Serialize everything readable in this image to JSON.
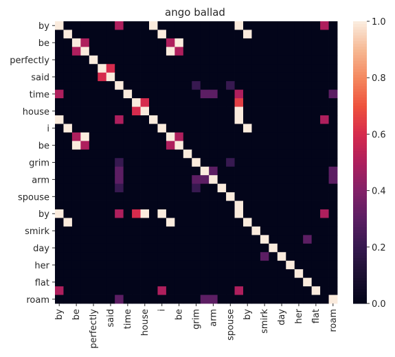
{
  "chart_data": {
    "type": "heatmap",
    "title": "ango ballad",
    "xlabel": "",
    "ylabel": "",
    "tokens": [
      "by",
      "by",
      "be",
      "be",
      "perfectly",
      "said",
      "said",
      "time",
      "time",
      "house",
      "house",
      "i",
      "i",
      "be",
      "be",
      "grim",
      "grim",
      "arm",
      "arm",
      "spouse",
      "spouse",
      "by",
      "by",
      "smirk",
      "smirk",
      "day",
      "day",
      "her",
      "her",
      "flat",
      "flat",
      "roam",
      "roam"
    ],
    "x_tick_labels": [
      "by",
      "be",
      "perfectly",
      "said",
      "time",
      "house",
      "i",
      "be",
      "grim",
      "arm",
      "spouse",
      "by",
      "smirk",
      "day",
      "her",
      "flat",
      "roam"
    ],
    "y_tick_labels": [
      "by",
      "be",
      "perfectly",
      "said",
      "time",
      "house",
      "i",
      "be",
      "grim",
      "arm",
      "spouse",
      "by",
      "smirk",
      "day",
      "her",
      "flat",
      "roam"
    ],
    "tick_every": 2,
    "colorbar": {
      "min": 0.0,
      "max": 1.0,
      "ticks": [
        "0.0",
        "0.2",
        "0.4",
        "0.6",
        "0.8",
        "1.0"
      ],
      "colormap": "rocket"
    },
    "values": [
      [
        1,
        0,
        0,
        0,
        0,
        0,
        0,
        0.5,
        0,
        0,
        0,
        1,
        0,
        0,
        0,
        0,
        0,
        0,
        0,
        0,
        0,
        1,
        0,
        0,
        0,
        0,
        0,
        0,
        0,
        0,
        0,
        0.5,
        0
      ],
      [
        0,
        1,
        0,
        0,
        0,
        0,
        0,
        0,
        0,
        0,
        0,
        0,
        1,
        0,
        0,
        0,
        0,
        0,
        0,
        0,
        0,
        0,
        1,
        0,
        0,
        0,
        0,
        0,
        0,
        0,
        0,
        0,
        0
      ],
      [
        0,
        0,
        1,
        0.5,
        0,
        0,
        0,
        0,
        0,
        0,
        0,
        0,
        0,
        0.5,
        1,
        0,
        0,
        0,
        0,
        0,
        0,
        0,
        0,
        0,
        0,
        0,
        0,
        0,
        0,
        0,
        0,
        0,
        0
      ],
      [
        0,
        0,
        0.5,
        1,
        0,
        0,
        0,
        0,
        0,
        0,
        0,
        0,
        0,
        1,
        0.5,
        0,
        0,
        0,
        0,
        0,
        0,
        0,
        0,
        0,
        0,
        0,
        0,
        0,
        0,
        0,
        0,
        0,
        0
      ],
      [
        0,
        0,
        0,
        0,
        1,
        0,
        0,
        0,
        0,
        0,
        0,
        0,
        0,
        0,
        0,
        0,
        0,
        0,
        0,
        0,
        0,
        0,
        0,
        0,
        0,
        0,
        0,
        0,
        0,
        0,
        0,
        0,
        0
      ],
      [
        0,
        0,
        0,
        0,
        0,
        1,
        0.6,
        0,
        0,
        0,
        0,
        0,
        0,
        0,
        0,
        0,
        0,
        0,
        0,
        0,
        0,
        0,
        0,
        0,
        0,
        0,
        0,
        0,
        0,
        0,
        0,
        0,
        0
      ],
      [
        0,
        0,
        0,
        0,
        0,
        0.6,
        1,
        0,
        0,
        0,
        0,
        0,
        0,
        0,
        0,
        0,
        0,
        0,
        0,
        0,
        0,
        0,
        0,
        0,
        0,
        0,
        0,
        0,
        0,
        0,
        0,
        0,
        0
      ],
      [
        0,
        0,
        0,
        0,
        0,
        0,
        0,
        1,
        0,
        0,
        0,
        0,
        0,
        0,
        0,
        0,
        0.2,
        0,
        0,
        0,
        0.2,
        0,
        0,
        0,
        0,
        0,
        0,
        0,
        0,
        0,
        0,
        0,
        0
      ],
      [
        0.5,
        0,
        0,
        0,
        0,
        0,
        0,
        0,
        1,
        0,
        0,
        0,
        0,
        0,
        0,
        0,
        0,
        0.3,
        0.3,
        0,
        0,
        0.5,
        0,
        0,
        0,
        0,
        0,
        0,
        0,
        0,
        0,
        0,
        0.3
      ],
      [
        0,
        0,
        0,
        0,
        0,
        0,
        0,
        0,
        0,
        1,
        0.6,
        0,
        0,
        0,
        0,
        0,
        0,
        0,
        0,
        0,
        0,
        0.65,
        0,
        0,
        0,
        0,
        0,
        0,
        0,
        0,
        0,
        0,
        0
      ],
      [
        0,
        0,
        0,
        0,
        0,
        0,
        0,
        0,
        0,
        0.6,
        1,
        0,
        0,
        0,
        0,
        0,
        0,
        0,
        0,
        0,
        0,
        1,
        0,
        0,
        0,
        0,
        0,
        0,
        0,
        0,
        0,
        0,
        0
      ],
      [
        1,
        0,
        0,
        0,
        0,
        0,
        0,
        0.5,
        0,
        0,
        0,
        1,
        0,
        0,
        0,
        0,
        0,
        0,
        0,
        0,
        0,
        1,
        0,
        0,
        0,
        0,
        0,
        0,
        0,
        0,
        0,
        0.5,
        0
      ],
      [
        0,
        1,
        0,
        0,
        0,
        0,
        0,
        0,
        0,
        0,
        0,
        0,
        1,
        0,
        0,
        0,
        0,
        0,
        0,
        0,
        0,
        0,
        1,
        0,
        0,
        0,
        0,
        0,
        0,
        0,
        0,
        0,
        0
      ],
      [
        0,
        0,
        0.5,
        1,
        0,
        0,
        0,
        0,
        0,
        0,
        0,
        0,
        0,
        1,
        0.5,
        0,
        0,
        0,
        0,
        0,
        0,
        0,
        0,
        0,
        0,
        0,
        0,
        0,
        0,
        0,
        0,
        0,
        0
      ],
      [
        0,
        0,
        1,
        0.5,
        0,
        0,
        0,
        0,
        0,
        0,
        0,
        0,
        0,
        0.5,
        1,
        0,
        0,
        0,
        0,
        0,
        0,
        0,
        0,
        0,
        0,
        0,
        0,
        0,
        0,
        0,
        0,
        0,
        0
      ],
      [
        0,
        0,
        0,
        0,
        0,
        0,
        0,
        0,
        0,
        0,
        0,
        0,
        0,
        0,
        0,
        1,
        0,
        0,
        0,
        0,
        0,
        0,
        0,
        0,
        0,
        0,
        0,
        0,
        0,
        0,
        0,
        0,
        0
      ],
      [
        0,
        0,
        0,
        0,
        0,
        0,
        0,
        0.2,
        0,
        0,
        0,
        0,
        0,
        0,
        0,
        0,
        1,
        0,
        0,
        0,
        0.2,
        0,
        0,
        0,
        0,
        0,
        0,
        0,
        0,
        0,
        0,
        0,
        0
      ],
      [
        0,
        0,
        0,
        0,
        0,
        0,
        0,
        0.3,
        0,
        0,
        0,
        0,
        0,
        0,
        0,
        0,
        0,
        1,
        0.3,
        0,
        0,
        0,
        0,
        0,
        0,
        0,
        0,
        0,
        0,
        0,
        0,
        0,
        0.3
      ],
      [
        0,
        0,
        0,
        0,
        0,
        0,
        0,
        0.3,
        0,
        0,
        0,
        0,
        0,
        0,
        0,
        0,
        0.3,
        0.3,
        1,
        0,
        0,
        0,
        0,
        0,
        0,
        0,
        0,
        0,
        0,
        0,
        0,
        0,
        0.3
      ],
      [
        0,
        0,
        0,
        0,
        0,
        0,
        0,
        0.2,
        0,
        0,
        0,
        0,
        0,
        0,
        0,
        0,
        0.2,
        0,
        0,
        1,
        0,
        0,
        0,
        0,
        0,
        0,
        0,
        0,
        0,
        0,
        0,
        0,
        0
      ],
      [
        0,
        0,
        0,
        0,
        0,
        0,
        0,
        0,
        0,
        0,
        0,
        0,
        0,
        0,
        0,
        0,
        0,
        0,
        0,
        0,
        1,
        0,
        0,
        0,
        0,
        0,
        0,
        0,
        0,
        0,
        0,
        0,
        0
      ],
      [
        0,
        0,
        0,
        0,
        0,
        0,
        0,
        0,
        0,
        0,
        0,
        0,
        0,
        0,
        0,
        0,
        0,
        0,
        0,
        0,
        0,
        1,
        0,
        0,
        0,
        0,
        0,
        0,
        0,
        0,
        0,
        0,
        0
      ],
      [
        1,
        0,
        0,
        0,
        0,
        0,
        0,
        0.5,
        0,
        0.6,
        1,
        0,
        1,
        0,
        0,
        0,
        0,
        0,
        0,
        0,
        0,
        1,
        0,
        0,
        0,
        0,
        0,
        0,
        0,
        0,
        0,
        0.5,
        0
      ],
      [
        0,
        1,
        0,
        0,
        0,
        0,
        0,
        0,
        0,
        0,
        0,
        0,
        0,
        1,
        0,
        0,
        0,
        0,
        0,
        0,
        0,
        0,
        1,
        0,
        0,
        0,
        0,
        0,
        0,
        0,
        0,
        0,
        0
      ],
      [
        0,
        0,
        0,
        0,
        0,
        0,
        0,
        0,
        0,
        0,
        0,
        0,
        0,
        0,
        0,
        0,
        0,
        0,
        0,
        0,
        0,
        0,
        0,
        1,
        0,
        0,
        0,
        0,
        0,
        0,
        0,
        0,
        0
      ],
      [
        0,
        0,
        0,
        0,
        0,
        0,
        0,
        0,
        0,
        0,
        0,
        0,
        0,
        0,
        0,
        0,
        0,
        0,
        0,
        0,
        0,
        0,
        0,
        0,
        1,
        0,
        0,
        0,
        0,
        0.3,
        0,
        0,
        0
      ],
      [
        0,
        0,
        0,
        0,
        0,
        0,
        0,
        0,
        0,
        0,
        0,
        0,
        0,
        0,
        0,
        0,
        0,
        0,
        0,
        0,
        0,
        0,
        0,
        0,
        0,
        1,
        0,
        0,
        0,
        0,
        0,
        0,
        0
      ],
      [
        0,
        0,
        0,
        0,
        0,
        0,
        0,
        0,
        0,
        0,
        0,
        0,
        0,
        0,
        0,
        0,
        0,
        0,
        0,
        0,
        0,
        0,
        0,
        0,
        0.3,
        0,
        1,
        0,
        0,
        0,
        0,
        0,
        0
      ],
      [
        0,
        0,
        0,
        0,
        0,
        0,
        0,
        0,
        0,
        0,
        0,
        0,
        0,
        0,
        0,
        0,
        0,
        0,
        0,
        0,
        0,
        0,
        0,
        0,
        0,
        0,
        0,
        1,
        0,
        0,
        0,
        0,
        0
      ],
      [
        0,
        0,
        0,
        0,
        0,
        0,
        0,
        0,
        0,
        0,
        0,
        0,
        0,
        0,
        0,
        0,
        0,
        0,
        0,
        0,
        0,
        0,
        0,
        0,
        0,
        0,
        0,
        0,
        1,
        0,
        0,
        0,
        0
      ],
      [
        0,
        0,
        0,
        0,
        0,
        0,
        0,
        0,
        0,
        0,
        0,
        0,
        0,
        0,
        0,
        0,
        0,
        0,
        0,
        0,
        0,
        0,
        0,
        0,
        0,
        0,
        0,
        0,
        0,
        1,
        0,
        0,
        0
      ],
      [
        0.5,
        0,
        0,
        0,
        0,
        0,
        0,
        0,
        0,
        0,
        0,
        0,
        0.5,
        0,
        0,
        0,
        0,
        0,
        0,
        0,
        0,
        0.5,
        0,
        0,
        0,
        0,
        0,
        0,
        0,
        0,
        1,
        0,
        0
      ],
      [
        0,
        0,
        0,
        0,
        0,
        0,
        0,
        0.3,
        0,
        0,
        0,
        0,
        0,
        0,
        0,
        0,
        0,
        0.3,
        0.3,
        0,
        0,
        0,
        0,
        0,
        0,
        0,
        0,
        0,
        0,
        0,
        0,
        0,
        1
      ]
    ]
  }
}
